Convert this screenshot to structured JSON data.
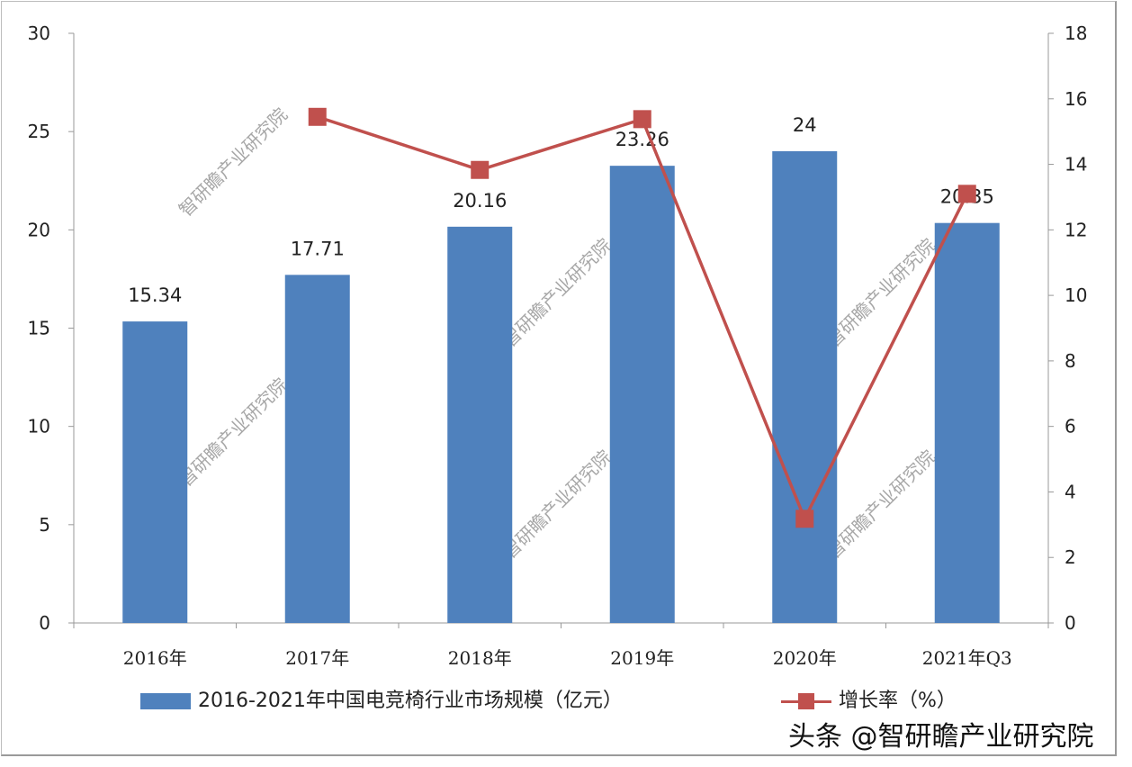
{
  "chart_data": {
    "type": "bar+line",
    "categories": [
      "2016年",
      "2017年",
      "2018年",
      "2019年",
      "2020年",
      "2021年Q3"
    ],
    "series": [
      {
        "name": "2016-2021年中国电竞椅行业市场规模（亿元）",
        "type": "bar",
        "axis": "left",
        "color": "#4f81bd",
        "values": [
          15.34,
          17.71,
          20.16,
          23.26,
          24,
          20.35
        ],
        "data_labels": [
          "15.34",
          "17.71",
          "20.16",
          "23.26",
          "24",
          "20.35"
        ]
      },
      {
        "name": "增长率（%）",
        "type": "line",
        "axis": "right",
        "color": "#c0504d",
        "values": [
          null,
          15.45,
          13.83,
          15.38,
          3.18,
          13.1
        ]
      }
    ],
    "y_left": {
      "range": [
        0,
        30
      ],
      "ticks": [
        "0",
        "5",
        "10",
        "15",
        "20",
        "25",
        "30"
      ]
    },
    "y_right": {
      "range": [
        0,
        18
      ],
      "ticks": [
        "0",
        "2",
        "4",
        "6",
        "8",
        "10",
        "12",
        "14",
        "16",
        "18"
      ]
    },
    "grid": false,
    "legend": "bottom"
  },
  "watermark": "智研瞻产业研究院",
  "credit": "头条 @智研瞻产业研究院"
}
